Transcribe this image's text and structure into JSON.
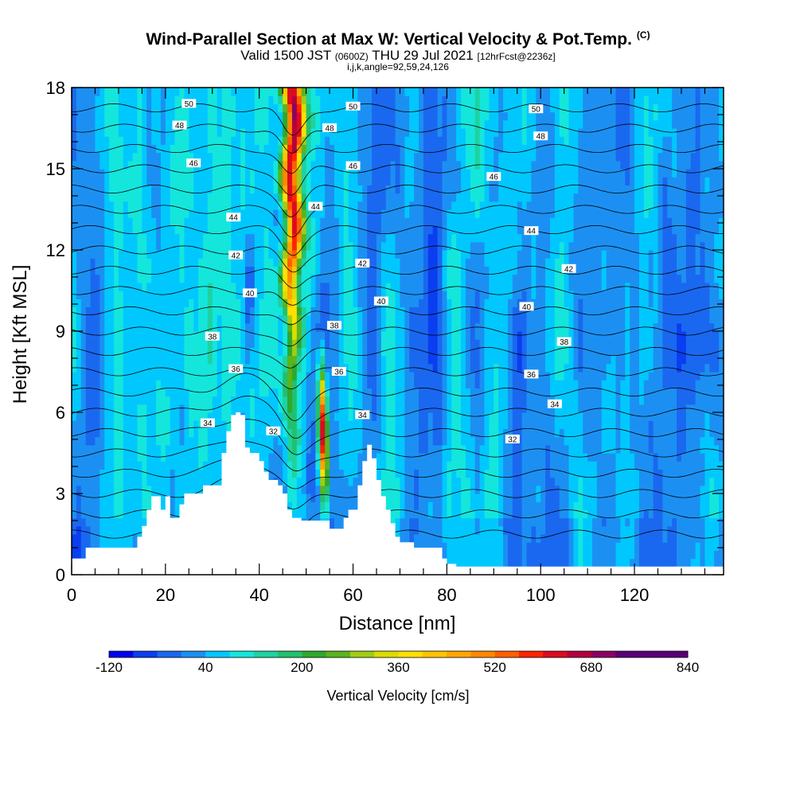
{
  "title": {
    "main": "Wind-Parallel Section at Max W: Vertical Velocity & Pot.Temp.",
    "copyright": "(C)",
    "valid_pre": "Valid 1500 JST",
    "valid_z": "(0600Z)",
    "valid_date": "THU 29 Jul 2021",
    "fcst": "[12hrFcst@2236z]",
    "indices": "i,j,k,angle=92,59,24,126"
  },
  "chart_data": {
    "type": "heatmap",
    "xlabel": "Distance [nm]",
    "ylabel": "Height [Kft MSL]",
    "xlim": [
      0,
      139
    ],
    "ylim": [
      0,
      18
    ],
    "x_ticks": [
      "0",
      "20",
      "40",
      "60",
      "80",
      "100",
      "120"
    ],
    "y_ticks": [
      "0",
      "3",
      "6",
      "9",
      "12",
      "15",
      "18"
    ],
    "colorbar": {
      "label": "Vertical Velocity [cm/s]",
      "min": -120,
      "max": 840,
      "step": 40,
      "tick_labels": [
        "-120",
        "40",
        "200",
        "360",
        "520",
        "680",
        "840"
      ],
      "colors": [
        "#0000ee",
        "#0a3ef0",
        "#1a68f0",
        "#1c90f2",
        "#00c8ff",
        "#14e6dc",
        "#1ed2a0",
        "#22c06e",
        "#2ea82e",
        "#5ab41e",
        "#a0cc14",
        "#dcdc00",
        "#ffe000",
        "#ffc400",
        "#ffa600",
        "#ff8800",
        "#ff5e00",
        "#ff2200",
        "#dc0a20",
        "#b4003c",
        "#8c0064",
        "#5a0078"
      ]
    },
    "background_w_cm_s": 40,
    "updraft_cores": [
      {
        "x": 47,
        "peak_w_cm_s": 680
      },
      {
        "x": 54,
        "peak_w_cm_s": 640
      }
    ],
    "theta_contour_labels": [
      {
        "text": "50",
        "x": 25,
        "y": 17.4
      },
      {
        "text": "50",
        "x": 60,
        "y": 17.3
      },
      {
        "text": "50",
        "x": 99,
        "y": 17.2
      },
      {
        "text": "48",
        "x": 23,
        "y": 16.6
      },
      {
        "text": "48",
        "x": 55,
        "y": 16.5
      },
      {
        "text": "48",
        "x": 100,
        "y": 16.2
      },
      {
        "text": "46",
        "x": 26,
        "y": 15.2
      },
      {
        "text": "46",
        "x": 60,
        "y": 15.1
      },
      {
        "text": "46",
        "x": 90,
        "y": 14.7
      },
      {
        "text": "44",
        "x": 34.5,
        "y": 13.2
      },
      {
        "text": "44",
        "x": 52,
        "y": 13.6
      },
      {
        "text": "44",
        "x": 98,
        "y": 12.7
      },
      {
        "text": "42",
        "x": 35,
        "y": 11.8
      },
      {
        "text": "42",
        "x": 62,
        "y": 11.5
      },
      {
        "text": "42",
        "x": 106,
        "y": 11.3
      },
      {
        "text": "40",
        "x": 38,
        "y": 10.4
      },
      {
        "text": "40",
        "x": 66,
        "y": 10.1
      },
      {
        "text": "40",
        "x": 97,
        "y": 9.9
      },
      {
        "text": "38",
        "x": 30,
        "y": 8.8
      },
      {
        "text": "38",
        "x": 56,
        "y": 9.2
      },
      {
        "text": "38",
        "x": 105,
        "y": 8.6
      },
      {
        "text": "36",
        "x": 35,
        "y": 7.6
      },
      {
        "text": "36",
        "x": 57,
        "y": 7.5
      },
      {
        "text": "36",
        "x": 98,
        "y": 7.4
      },
      {
        "text": "34",
        "x": 29,
        "y": 5.6
      },
      {
        "text": "34",
        "x": 62,
        "y": 5.9
      },
      {
        "text": "34",
        "x": 103,
        "y": 6.3
      },
      {
        "text": "32",
        "x": 43,
        "y": 5.3
      },
      {
        "text": "32",
        "x": 94,
        "y": 5.0
      }
    ],
    "terrain_kft": [
      [
        0,
        0.6
      ],
      [
        3,
        0.6
      ],
      [
        3,
        1.0
      ],
      [
        14,
        1.0
      ],
      [
        14,
        1.4
      ],
      [
        15,
        1.4
      ],
      [
        15,
        1.8
      ],
      [
        16,
        1.8
      ],
      [
        16,
        2.4
      ],
      [
        17,
        2.4
      ],
      [
        17,
        2.9
      ],
      [
        19,
        2.9
      ],
      [
        19,
        2.4
      ],
      [
        20,
        2.4
      ],
      [
        20,
        2.9
      ],
      [
        21,
        2.9
      ],
      [
        21,
        2.1
      ],
      [
        23,
        2.1
      ],
      [
        23,
        2.6
      ],
      [
        24,
        2.6
      ],
      [
        24,
        3.0
      ],
      [
        28,
        3.0
      ],
      [
        28,
        3.3
      ],
      [
        32,
        3.3
      ],
      [
        32,
        4.5
      ],
      [
        33,
        4.5
      ],
      [
        33,
        5.3
      ],
      [
        34,
        5.3
      ],
      [
        34,
        5.9
      ],
      [
        35,
        5.9
      ],
      [
        35,
        6.0
      ],
      [
        36,
        6.0
      ],
      [
        36,
        5.9
      ],
      [
        37,
        5.9
      ],
      [
        37,
        4.7
      ],
      [
        38,
        4.7
      ],
      [
        38,
        4.5
      ],
      [
        40,
        4.5
      ],
      [
        40,
        4.2
      ],
      [
        41,
        4.2
      ],
      [
        41,
        3.8
      ],
      [
        42,
        3.8
      ],
      [
        42,
        3.5
      ],
      [
        44,
        3.5
      ],
      [
        44,
        3.3
      ],
      [
        45,
        3.3
      ],
      [
        45,
        3.0
      ],
      [
        46,
        3.0
      ],
      [
        46,
        2.4
      ],
      [
        47,
        2.4
      ],
      [
        47,
        2.1
      ],
      [
        49,
        2.1
      ],
      [
        49,
        2.0
      ],
      [
        55,
        2.0
      ],
      [
        55,
        1.7
      ],
      [
        58,
        1.7
      ],
      [
        58,
        2.1
      ],
      [
        59,
        2.1
      ],
      [
        59,
        2.4
      ],
      [
        61,
        2.4
      ],
      [
        61,
        3.3
      ],
      [
        62,
        3.3
      ],
      [
        62,
        4.2
      ],
      [
        63,
        4.2
      ],
      [
        63,
        4.8
      ],
      [
        64,
        4.8
      ],
      [
        64,
        4.3
      ],
      [
        65,
        4.3
      ],
      [
        65,
        3.5
      ],
      [
        66,
        3.5
      ],
      [
        66,
        2.9
      ],
      [
        67,
        2.9
      ],
      [
        67,
        2.4
      ],
      [
        68,
        2.4
      ],
      [
        68,
        1.9
      ],
      [
        69,
        1.9
      ],
      [
        69,
        1.4
      ],
      [
        70,
        1.4
      ],
      [
        70,
        1.2
      ],
      [
        73,
        1.2
      ],
      [
        73,
        1.0
      ],
      [
        79,
        1.0
      ],
      [
        79,
        0.6
      ],
      [
        80,
        0.6
      ],
      [
        80,
        0.4
      ],
      [
        82,
        0.4
      ],
      [
        82,
        0.3
      ],
      [
        139,
        0.3
      ]
    ]
  }
}
